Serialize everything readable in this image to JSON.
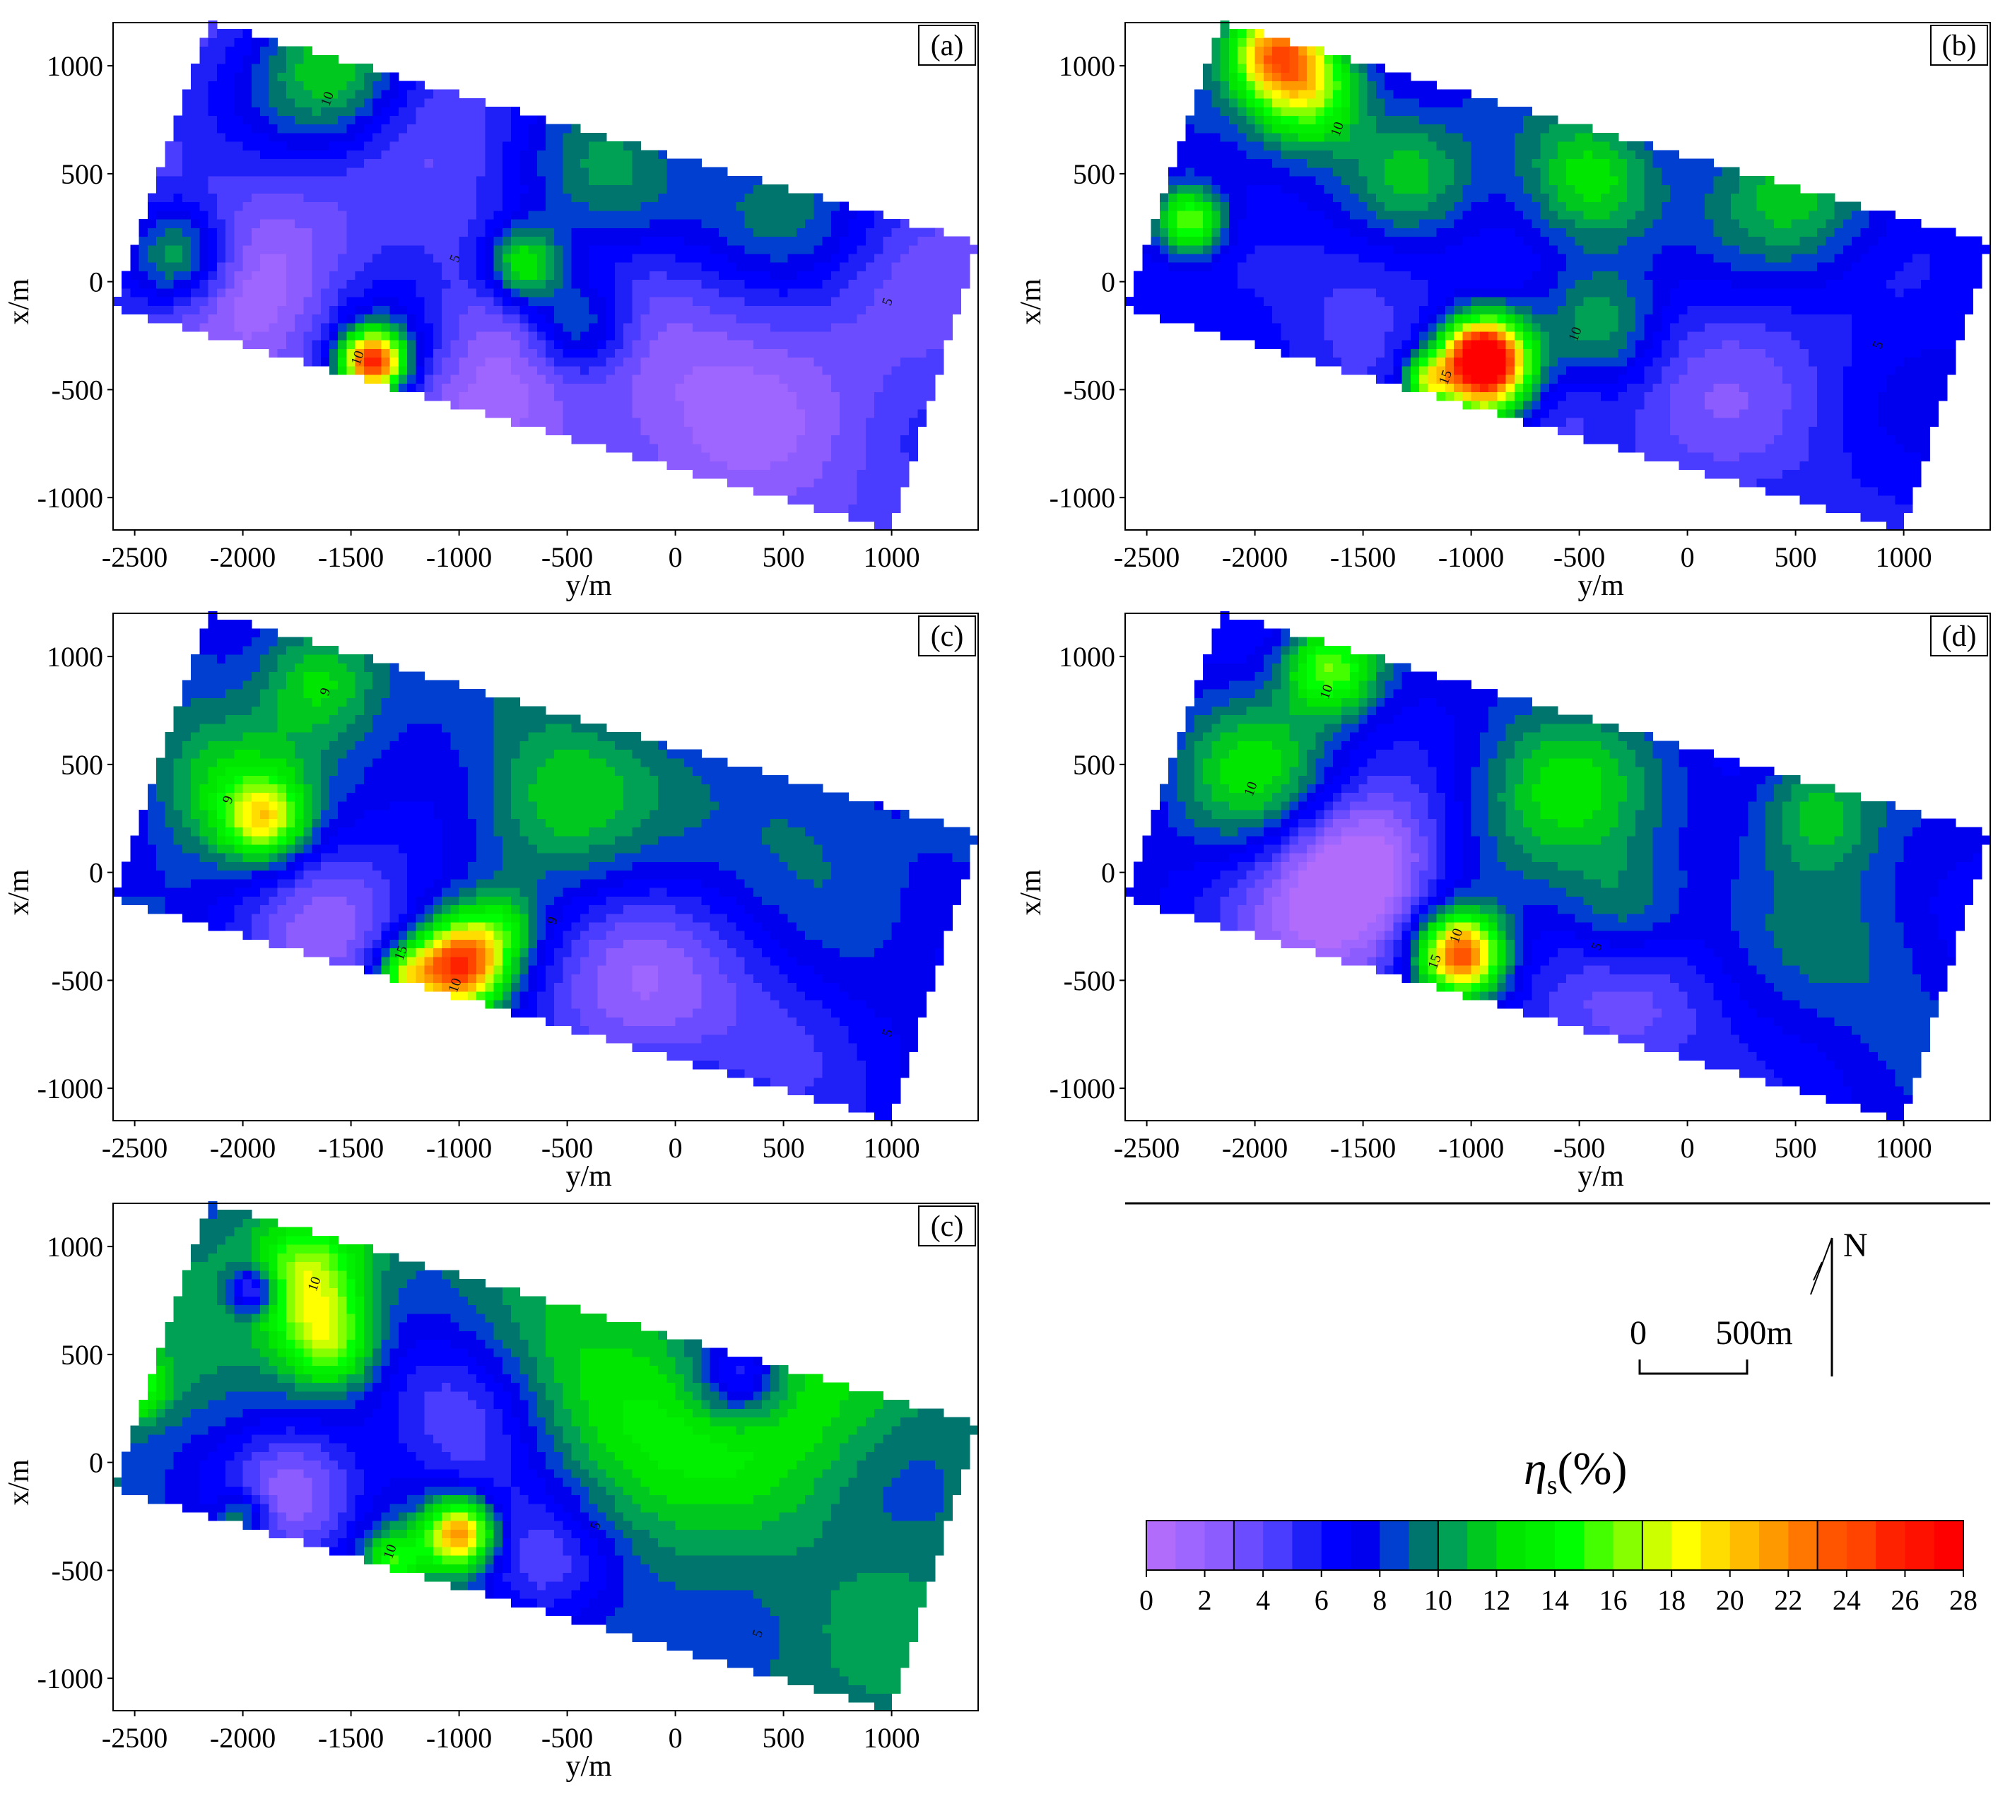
{
  "panel_label_suffix": ")",
  "panel_label_prefix": "(",
  "chart_data": [
    {
      "type": "heatmap",
      "panel_label": "a",
      "xlabel": "y/m",
      "ylabel": "x/m",
      "xlim": [
        -2600,
        1400
      ],
      "ylim": [
        -1150,
        1200
      ],
      "x_ticks": [
        "-2500",
        "-2000",
        "-1500",
        "-1000",
        "-500",
        "0",
        "500",
        "1000"
      ],
      "y_ticks": [
        "1000",
        "500",
        "0",
        "-500",
        "-1000"
      ],
      "background_value": 4.5,
      "anomalies": [
        {
          "y": -1400,
          "x": -370,
          "value": 23,
          "sigma": 100
        },
        {
          "y": -1350,
          "x": -330,
          "value": 10,
          "sigma": 260
        },
        {
          "y": -2300,
          "x": 120,
          "value": 12,
          "sigma": 170
        },
        {
          "y": -1600,
          "x": 980,
          "value": 12,
          "sigma": 260
        },
        {
          "y": -700,
          "x": 80,
          "value": 13,
          "sigma": 130
        },
        {
          "y": -450,
          "x": -200,
          "value": 11,
          "sigma": 170
        },
        {
          "y": -300,
          "x": 450,
          "value": 10,
          "sigma": 320
        },
        {
          "y": 500,
          "x": 380,
          "value": 10,
          "sigma": 300
        },
        {
          "y": -900,
          "x": -450,
          "value": 1,
          "sigma": 400
        },
        {
          "y": 200,
          "x": -400,
          "value": 2,
          "sigma": 500
        },
        {
          "y": -1900,
          "x": -100,
          "value": 2,
          "sigma": 400
        }
      ],
      "contour_labels": [
        {
          "y": -1590,
          "x": 840,
          "text": "10"
        },
        {
          "y": -1450,
          "x": -360,
          "text": "10"
        },
        {
          "y": -1000,
          "x": 100,
          "text": "5"
        },
        {
          "y": 1000,
          "x": -100,
          "text": "5"
        }
      ]
    },
    {
      "type": "heatmap",
      "panel_label": "b",
      "xlabel": "y/m",
      "ylabel": "x/m",
      "xlim": [
        -2600,
        1400
      ],
      "ylim": [
        -1150,
        1200
      ],
      "x_ticks": [
        "-2500",
        "-2000",
        "-1500",
        "-1000",
        "-500",
        "0",
        "500",
        "1000"
      ],
      "y_ticks": [
        "1000",
        "500",
        "0",
        "-500",
        "-1000"
      ],
      "background_value": 7,
      "anomalies": [
        {
          "y": -1900,
          "x": 1080,
          "value": 20,
          "sigma": 150
        },
        {
          "y": -1750,
          "x": 880,
          "value": 17,
          "sigma": 180
        },
        {
          "y": -2300,
          "x": 280,
          "value": 17,
          "sigma": 110
        },
        {
          "y": -950,
          "x": -350,
          "value": 26,
          "sigma": 120
        },
        {
          "y": -900,
          "x": -450,
          "value": 18,
          "sigma": 180
        },
        {
          "y": -1200,
          "x": -450,
          "value": 16,
          "sigma": 80
        },
        {
          "y": -450,
          "x": 450,
          "value": 13,
          "sigma": 220
        },
        {
          "y": -400,
          "x": -200,
          "value": 12,
          "sigma": 200
        },
        {
          "y": 500,
          "x": 400,
          "value": 12,
          "sigma": 280
        },
        {
          "y": -1300,
          "x": 500,
          "value": 12,
          "sigma": 220
        },
        {
          "y": -1500,
          "x": 0,
          "value": 4,
          "sigma": 300
        },
        {
          "y": 200,
          "x": -500,
          "value": 4,
          "sigma": 500
        },
        {
          "y": -700,
          "x": -550,
          "value": 2,
          "sigma": 200
        }
      ],
      "contour_labels": [
        {
          "y": -1600,
          "x": 700,
          "text": "10"
        },
        {
          "y": -1100,
          "x": -450,
          "text": "15"
        },
        {
          "y": -500,
          "x": -250,
          "text": "10"
        },
        {
          "y": 900,
          "x": -300,
          "text": "5"
        }
      ]
    },
    {
      "type": "heatmap",
      "panel_label": "c",
      "xlabel": "y/m",
      "ylabel": "x/m",
      "xlim": [
        -2600,
        1400
      ],
      "ylim": [
        -1150,
        1200
      ],
      "x_ticks": [
        "-2500",
        "-2000",
        "-1500",
        "-1000",
        "-500",
        "0",
        "500",
        "1000"
      ],
      "y_ticks": [
        "1000",
        "500",
        "0",
        "-500",
        "-1000"
      ],
      "background_value": 7.5,
      "anomalies": [
        {
          "y": -1000,
          "x": -430,
          "value": 25,
          "sigma": 140
        },
        {
          "y": -1250,
          "x": -480,
          "value": 16,
          "sigma": 100
        },
        {
          "y": -1900,
          "x": 250,
          "value": 17,
          "sigma": 130
        },
        {
          "y": -2100,
          "x": 400,
          "value": 12,
          "sigma": 260
        },
        {
          "y": -1650,
          "x": 900,
          "value": 13,
          "sigma": 200
        },
        {
          "y": -550,
          "x": 350,
          "value": 12,
          "sigma": 300
        },
        {
          "y": 600,
          "x": 200,
          "value": 10,
          "sigma": 300
        },
        {
          "y": -800,
          "x": -250,
          "value": 12,
          "sigma": 120
        },
        {
          "y": -1600,
          "x": -200,
          "value": 3,
          "sigma": 300
        },
        {
          "y": -200,
          "x": -550,
          "value": 3,
          "sigma": 350
        },
        {
          "y": 500,
          "x": -700,
          "value": 5,
          "sigma": 300
        }
      ],
      "contour_labels": [
        {
          "y": -1000,
          "x": -530,
          "text": "10"
        },
        {
          "y": -1250,
          "x": -380,
          "text": "15"
        },
        {
          "y": -2050,
          "x": 330,
          "text": "9"
        },
        {
          "y": -1600,
          "x": 830,
          "text": "9"
        },
        {
          "y": -550,
          "x": -230,
          "text": "9"
        },
        {
          "y": 1000,
          "x": -750,
          "text": "5"
        }
      ]
    },
    {
      "type": "heatmap",
      "panel_label": "d",
      "xlabel": "y/m",
      "ylabel": "x/m",
      "xlim": [
        -2600,
        1400
      ],
      "ylim": [
        -1150,
        1200
      ],
      "x_ticks": [
        "-2500",
        "-2000",
        "-1500",
        "-1000",
        "-500",
        "0",
        "500",
        "1000"
      ],
      "y_ticks": [
        "1000",
        "500",
        "0",
        "-500",
        "-1000"
      ],
      "background_value": 7,
      "anomalies": [
        {
          "y": -1050,
          "x": -380,
          "value": 24,
          "sigma": 130
        },
        {
          "y": -1650,
          "x": 950,
          "value": 16,
          "sigma": 150
        },
        {
          "y": -2000,
          "x": 450,
          "value": 12,
          "sigma": 250
        },
        {
          "y": -600,
          "x": 350,
          "value": 12,
          "sigma": 300
        },
        {
          "y": 600,
          "x": 300,
          "value": 12,
          "sigma": 200
        },
        {
          "y": -300,
          "x": -200,
          "value": 11,
          "sigma": 200
        },
        {
          "y": -1500,
          "x": 50,
          "value": 2,
          "sigma": 250
        },
        {
          "y": -1650,
          "x": -200,
          "value": 2,
          "sigma": 300
        },
        {
          "y": -300,
          "x": -650,
          "value": 3,
          "sigma": 300
        },
        {
          "y": 800,
          "x": -400,
          "value": 9,
          "sigma": 350
        }
      ],
      "contour_labels": [
        {
          "y": -1650,
          "x": 830,
          "text": "10"
        },
        {
          "y": -2000,
          "x": 380,
          "text": "10"
        },
        {
          "y": -1150,
          "x": -420,
          "text": "15"
        },
        {
          "y": -1050,
          "x": -300,
          "text": "10"
        },
        {
          "y": -400,
          "x": -350,
          "text": "5"
        }
      ]
    },
    {
      "type": "heatmap",
      "panel_label": "c",
      "xlabel": "y/m",
      "ylabel": "x/m",
      "xlim": [
        -2600,
        1400
      ],
      "ylim": [
        -1150,
        1200
      ],
      "x_ticks": [
        "-2500",
        "-2000",
        "-1500",
        "-1000",
        "-500",
        "0",
        "500",
        "1000"
      ],
      "y_ticks": [
        "1000",
        "500",
        "0",
        "-500",
        "-1000"
      ],
      "background_value": 9.5,
      "anomalies": [
        {
          "y": -1700,
          "x": 850,
          "value": 18,
          "sigma": 180
        },
        {
          "y": -1600,
          "x": 550,
          "value": 17,
          "sigma": 150
        },
        {
          "y": -2500,
          "x": 350,
          "value": 16,
          "sigma": 100
        },
        {
          "y": -1000,
          "x": -330,
          "value": 24,
          "sigma": 110
        },
        {
          "y": -1300,
          "x": -450,
          "value": 16,
          "sigma": 100
        },
        {
          "y": -2000,
          "x": -250,
          "value": 14,
          "sigma": 80
        },
        {
          "y": -300,
          "x": 200,
          "value": 13,
          "sigma": 350
        },
        {
          "y": 500,
          "x": 300,
          "value": 13,
          "sigma": 350
        },
        {
          "y": -1000,
          "x": 200,
          "value": 4,
          "sigma": 300
        },
        {
          "y": -1750,
          "x": -150,
          "value": 2,
          "sigma": 250
        },
        {
          "y": 300,
          "x": 400,
          "value": 3,
          "sigma": 150
        },
        {
          "y": -1950,
          "x": 800,
          "value": 2,
          "sigma": 80
        },
        {
          "y": -600,
          "x": -500,
          "value": 4,
          "sigma": 250
        }
      ],
      "contour_labels": [
        {
          "y": -1650,
          "x": 820,
          "text": "10"
        },
        {
          "y": -1300,
          "x": -420,
          "text": "10"
        },
        {
          "y": -350,
          "x": -300,
          "text": "5"
        },
        {
          "y": 400,
          "x": -800,
          "text": "5"
        }
      ]
    }
  ],
  "legend": {
    "north_label": "N",
    "scale_zero": "0",
    "scale_label": "500m",
    "colorbar_title": "η",
    "colorbar_title_sub": "s",
    "colorbar_title_unit": "(%)",
    "colorbar_ticks": [
      "0",
      "2",
      "4",
      "6",
      "8",
      "10",
      "12",
      "14",
      "16",
      "18",
      "20",
      "22",
      "24",
      "26",
      "28"
    ],
    "colorbar_min": 0,
    "colorbar_max": 28,
    "colorbar_colors": [
      "#b16cfb",
      "#9e66ff",
      "#8d5cff",
      "#6b4cff",
      "#4b3dff",
      "#1f1ff7",
      "#0000ff",
      "#0000ee",
      "#003fcf",
      "#00756e",
      "#00a055",
      "#00c81e",
      "#00e600",
      "#00f000",
      "#00ff00",
      "#44ff00",
      "#88ff00",
      "#ccff00",
      "#ffff00",
      "#ffdd00",
      "#ffbb00",
      "#ff9900",
      "#ff7700",
      "#ff5500",
      "#ff4400",
      "#ff2200",
      "#ff1100",
      "#ff0000"
    ]
  }
}
